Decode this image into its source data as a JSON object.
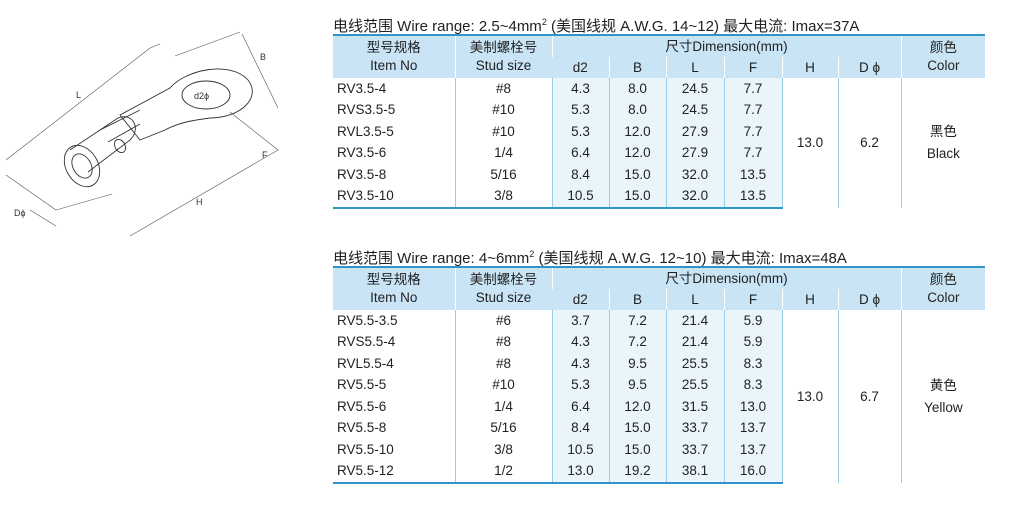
{
  "drawing": {
    "labels": {
      "B": "B",
      "L": "L",
      "F": "F",
      "H": "H",
      "Dphi": "Dϕ",
      "d2phi": "d2ϕ"
    }
  },
  "headers": {
    "item_cn": "型号规格",
    "item_en": "Item No",
    "stud_cn": "美制螺栓号",
    "stud_en": "Stud size",
    "dimension": "尺寸Dimension(mm)",
    "d2": "d2",
    "b": "B",
    "l": "L",
    "f": "F",
    "h": "H",
    "dphi": "D ϕ",
    "color_cn": "颜色",
    "color_en": "Color"
  },
  "tables": [
    {
      "title_pre": "电线范围 Wire range: 2.5~4mm",
      "title_sup": "2",
      "title_post": " (美国线规 A.W.G. 14~12)  最大电流: Imax=37A",
      "h": "13.0",
      "dphi": "6.2",
      "color_cn": "黑色",
      "color_en": "Black",
      "rows": [
        [
          "RV3.5-4",
          "#8",
          "4.3",
          "8.0",
          "24.5",
          "7.7"
        ],
        [
          "RVS3.5-5",
          "#10",
          "5.3",
          "8.0",
          "24.5",
          "7.7"
        ],
        [
          "RVL3.5-5",
          "#10",
          "5.3",
          "12.0",
          "27.9",
          "7.7"
        ],
        [
          "RV3.5-6",
          "1/4",
          "6.4",
          "12.0",
          "27.9",
          "7.7"
        ],
        [
          "RV3.5-8",
          "5/16",
          "8.4",
          "15.0",
          "32.0",
          "13.5"
        ],
        [
          "RV3.5-10",
          "3/8",
          "10.5",
          "15.0",
          "32.0",
          "13.5"
        ]
      ]
    },
    {
      "title_pre": "电线范围 Wire range: 4~6mm",
      "title_sup": "2",
      "title_post": " (美国线规 A.W.G. 12~10)  最大电流: Imax=48A",
      "h": "13.0",
      "dphi": "6.7",
      "color_cn": "黄色",
      "color_en": "Yellow",
      "rows": [
        [
          "RV5.5-3.5",
          "#6",
          "3.7",
          "7.2",
          "21.4",
          "5.9"
        ],
        [
          "RVS5.5-4",
          "#8",
          "4.3",
          "7.2",
          "21.4",
          "5.9"
        ],
        [
          "RVL5.5-4",
          "#8",
          "4.3",
          "9.5",
          "25.5",
          "8.3"
        ],
        [
          "RV5.5-5",
          "#10",
          "5.3",
          "9.5",
          "25.5",
          "8.3"
        ],
        [
          "RV5.5-6",
          "1/4",
          "6.4",
          "12.0",
          "31.5",
          "13.0"
        ],
        [
          "RV5.5-8",
          "5/16",
          "8.4",
          "15.0",
          "33.7",
          "13.7"
        ],
        [
          "RV5.5-10",
          "3/8",
          "10.5",
          "15.0",
          "33.7",
          "13.7"
        ],
        [
          "RV5.5-12",
          "1/2",
          "13.0",
          "19.2",
          "38.1",
          "16.0"
        ]
      ]
    }
  ]
}
